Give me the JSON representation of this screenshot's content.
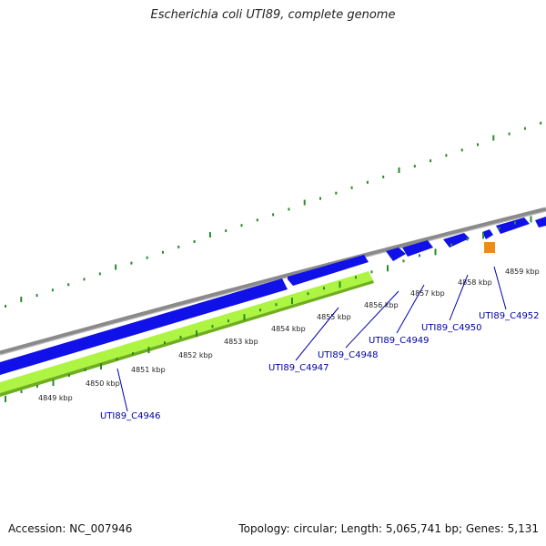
{
  "title": "Escherichia coli UTI89, complete genome",
  "footer": {
    "accession_label": "Accession: NC_007946",
    "topology_label": "Topology: circular; Length: 5,065,741 bp; Genes: 5,131"
  },
  "colors": {
    "backbone": "#8a8a8a",
    "gene_fwd": "#1010e8",
    "gene_highlight": "#adf542",
    "gene_other": "#f08a1a",
    "ticks": "#2a8a2a",
    "label": "#0000aa"
  },
  "kbp_ticks": [
    "4849 kbp",
    "4850 kbp",
    "4851 kbp",
    "4852 kbp",
    "4853 kbp",
    "4854 kbp",
    "4855 kbp",
    "4856 kbp",
    "4857 kbp",
    "4858 kbp",
    "4859 kbp"
  ],
  "genes": [
    "UTI89_C4946",
    "UTI89_C4947",
    "UTI89_C4948",
    "UTI89_C4949",
    "UTI89_C4950",
    "UTI89_C4952"
  ]
}
